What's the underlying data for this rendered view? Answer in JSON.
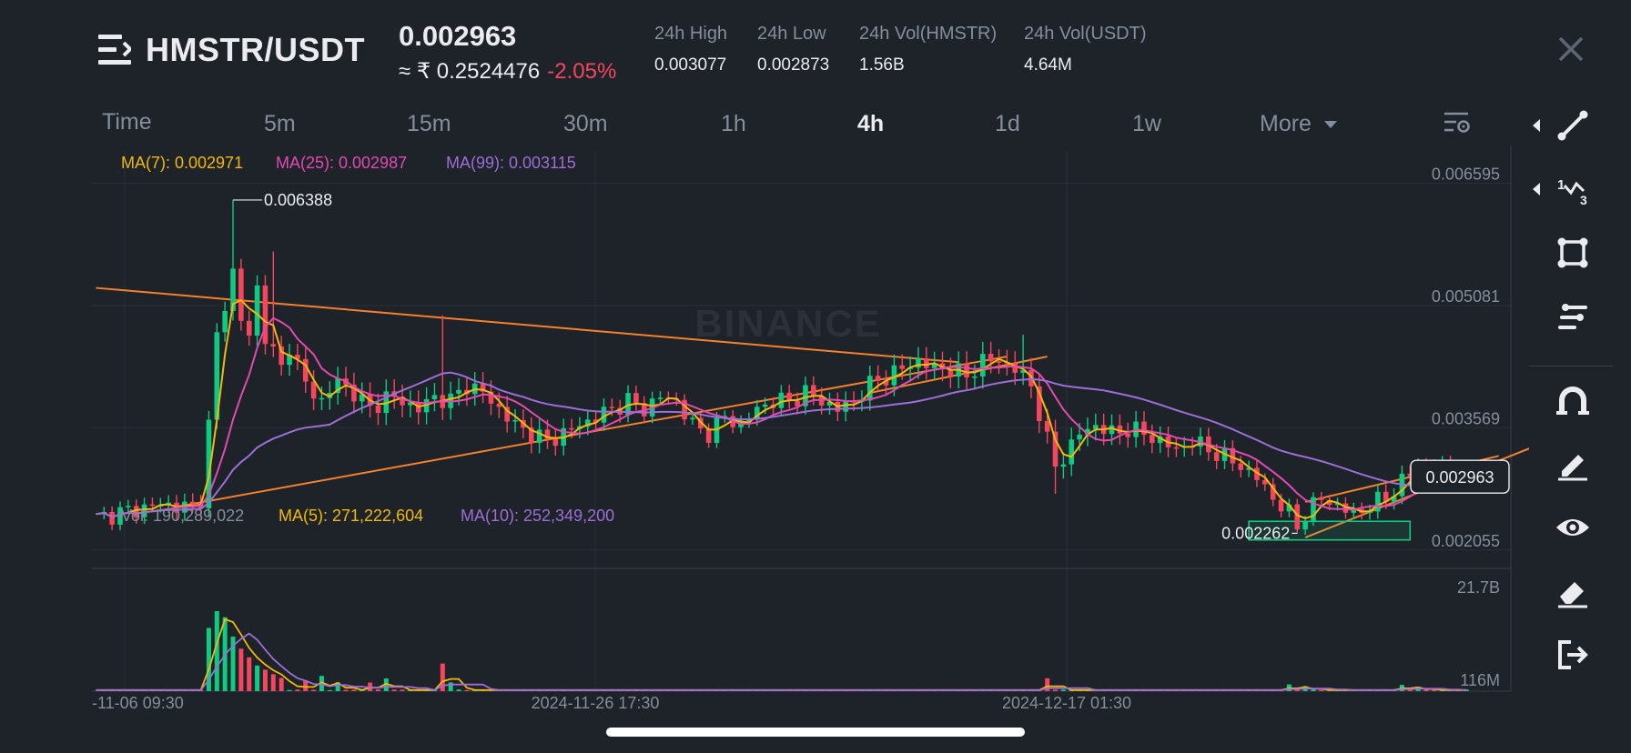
{
  "header": {
    "pair": "HMSTR/USDT",
    "last_price": "0.002963",
    "fiat_price": "≈ ₹ 0.2524476",
    "change": "-2.05%",
    "stats": [
      {
        "label": "24h High",
        "value": "0.003077"
      },
      {
        "label": "24h Low",
        "value": "0.002873"
      },
      {
        "label": "24h Vol(HMSTR)",
        "value": "1.56B"
      },
      {
        "label": "24h Vol(USDT)",
        "value": "4.64M"
      }
    ]
  },
  "timeframes": [
    {
      "label": "Time",
      "active": false
    },
    {
      "label": "5m",
      "active": false
    },
    {
      "label": "15m",
      "active": false
    },
    {
      "label": "30m",
      "active": false
    },
    {
      "label": "1h",
      "active": false
    },
    {
      "label": "4h",
      "active": true
    },
    {
      "label": "1d",
      "active": false
    },
    {
      "label": "1w",
      "active": false
    },
    {
      "label": "More",
      "active": false
    }
  ],
  "indicators": {
    "ma7": "MA(7): 0.002971",
    "ma25": "MA(25): 0.002987",
    "ma99": "MA(99): 0.003115",
    "vol": "Vol: 190,289,022",
    "vol_ma5": "MA(5): 271,222,604",
    "vol_ma10": "MA(10): 252,349,200"
  },
  "colors": {
    "up": "#0ecb81",
    "down": "#f6465d",
    "ma7": "#f0b90b",
    "ma25": "#e34ab1",
    "ma99": "#9c6fd6",
    "trendline": "#f5812c",
    "zone": "#0ecb81"
  },
  "watermark": "BINANCE",
  "toolbar_icons": [
    "trendline-icon",
    "fibonacci-icon",
    "shape-icon",
    "indicator-icon",
    "magnet-icon",
    "brush-icon",
    "eye-icon",
    "eraser-icon",
    "exit-icon"
  ],
  "chart_data": {
    "type": "candlestick",
    "symbol": "HMSTR/USDT",
    "interval": "4h",
    "price_axis_ticks": [
      0.006595,
      0.005081,
      0.003569,
      0.002055
    ],
    "price_axis_labels": [
      "0.006595",
      "0.005081",
      "0.003569",
      "0.002055"
    ],
    "volume_axis_labels": [
      "21.7B",
      "116M"
    ],
    "x_tick_labels": [
      "-11-06 09:30",
      "2024-11-26 17:30",
      "2024-12-17 01:30"
    ],
    "current_price": 0.002963,
    "current_price_label": "0.002963",
    "high_marker": {
      "value": 0.006388,
      "label": "0.006388"
    },
    "low_marker": {
      "value": 0.002262,
      "label": "0.002262"
    },
    "price_range": [
      0.00185,
      0.00695
    ],
    "price_path": [
      [
        0,
        0.00245
      ],
      [
        3,
        0.00252
      ],
      [
        6,
        0.00258
      ],
      [
        8,
        0.00262
      ],
      [
        10,
        0.0026
      ],
      [
        12,
        0.00258
      ],
      [
        13,
        0.0027
      ],
      [
        14,
        0.0036
      ],
      [
        15,
        0.0047
      ],
      [
        16,
        0.0051
      ],
      [
        17,
        0.0055
      ],
      [
        18,
        0.0049
      ],
      [
        19,
        0.0047
      ],
      [
        20,
        0.0053
      ],
      [
        21,
        0.0047
      ],
      [
        22,
        0.0045
      ],
      [
        23,
        0.0043
      ],
      [
        24,
        0.0046
      ],
      [
        26,
        0.0041
      ],
      [
        28,
        0.0039
      ],
      [
        30,
        0.00415
      ],
      [
        32,
        0.004
      ],
      [
        34,
        0.0038
      ],
      [
        36,
        0.00395
      ],
      [
        38,
        0.0039
      ],
      [
        40,
        0.0038
      ],
      [
        42,
        0.00395
      ],
      [
        44,
        0.0039
      ],
      [
        46,
        0.0041
      ],
      [
        48,
        0.004
      ],
      [
        50,
        0.0038
      ],
      [
        52,
        0.0036
      ],
      [
        54,
        0.0035
      ],
      [
        56,
        0.0034
      ],
      [
        58,
        0.0035
      ],
      [
        60,
        0.0036
      ],
      [
        62,
        0.0037
      ],
      [
        64,
        0.0038
      ],
      [
        66,
        0.0039
      ],
      [
        68,
        0.0038
      ],
      [
        70,
        0.00395
      ],
      [
        72,
        0.0039
      ],
      [
        74,
        0.0036
      ],
      [
        76,
        0.0035
      ],
      [
        78,
        0.0037
      ],
      [
        80,
        0.0036
      ],
      [
        82,
        0.0038
      ],
      [
        84,
        0.0039
      ],
      [
        86,
        0.0039
      ],
      [
        88,
        0.004
      ],
      [
        90,
        0.0039
      ],
      [
        92,
        0.0038
      ],
      [
        94,
        0.0039
      ],
      [
        96,
        0.0041
      ],
      [
        98,
        0.0042
      ],
      [
        100,
        0.0043
      ],
      [
        102,
        0.0044
      ],
      [
        104,
        0.0043
      ],
      [
        106,
        0.0043
      ],
      [
        108,
        0.0042
      ],
      [
        110,
        0.0044
      ],
      [
        112,
        0.0044
      ],
      [
        114,
        0.0043
      ],
      [
        116,
        0.0041
      ],
      [
        118,
        0.0034
      ],
      [
        119,
        0.0031
      ],
      [
        120,
        0.0032
      ],
      [
        122,
        0.0035
      ],
      [
        124,
        0.0036
      ],
      [
        126,
        0.0035
      ],
      [
        128,
        0.00355
      ],
      [
        130,
        0.0035
      ],
      [
        132,
        0.0034
      ],
      [
        134,
        0.0033
      ],
      [
        136,
        0.0034
      ],
      [
        138,
        0.0033
      ],
      [
        140,
        0.0032
      ],
      [
        142,
        0.0031
      ],
      [
        144,
        0.00295
      ],
      [
        146,
        0.0027
      ],
      [
        148,
        0.0025
      ],
      [
        149,
        0.00235
      ],
      [
        150,
        0.0025
      ],
      [
        152,
        0.0027
      ],
      [
        154,
        0.0026
      ],
      [
        156,
        0.0025
      ],
      [
        158,
        0.0026
      ],
      [
        160,
        0.0027
      ],
      [
        162,
        0.0029
      ],
      [
        164,
        0.0031
      ],
      [
        166,
        0.003
      ],
      [
        168,
        0.00305
      ],
      [
        170,
        0.0029
      ],
      [
        172,
        0.00296
      ]
    ],
    "volume_spikes": [
      [
        14,
        15.0
      ],
      [
        15,
        19.0
      ],
      [
        16,
        17.5
      ],
      [
        17,
        13.0
      ],
      [
        18,
        10.0
      ],
      [
        19,
        8.0
      ],
      [
        20,
        6.0
      ],
      [
        21,
        5.0
      ],
      [
        22,
        4.0
      ],
      [
        23,
        3.0
      ],
      [
        26,
        2.5
      ],
      [
        28,
        3.5
      ],
      [
        30,
        2.0
      ],
      [
        34,
        2.0
      ],
      [
        36,
        3.0
      ],
      [
        43,
        6.5
      ],
      [
        44,
        2.0
      ],
      [
        118,
        3.0
      ],
      [
        148,
        1.5
      ],
      [
        150,
        1.2
      ],
      [
        162,
        1.5
      ],
      [
        164,
        1.0
      ]
    ],
    "volume_range": [
      0,
      21.7
    ]
  }
}
